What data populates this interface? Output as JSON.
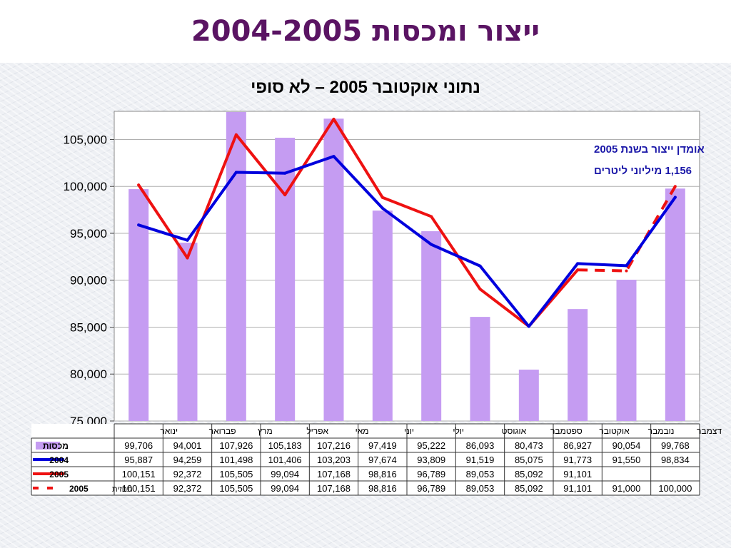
{
  "page": {
    "title": "ייצור ומכסות 2004-2005"
  },
  "chart_data": {
    "type": "bar",
    "title": "נתוני אוקטובר 2005 – לא סופי",
    "annotation_line1": "אומדן ייצור בשנת 2005",
    "annotation_line2": "1,156 מיליוני ליטרים",
    "categories": [
      "ינואר",
      "פברואר",
      "מרץ",
      "אפריל",
      "מאי",
      "יוני",
      "יולי",
      "אוגוסט",
      "ספטמבר",
      "אוקטובר",
      "נובמבר",
      "דצמבר"
    ],
    "ylim": [
      75000,
      108000
    ],
    "yticks": [
      75000,
      80000,
      85000,
      90000,
      95000,
      100000,
      105000
    ],
    "ytick_labels": [
      "75,000",
      "80,000",
      "85,000",
      "90,000",
      "95,000",
      "100,000",
      "105,000"
    ],
    "grid": true,
    "series": [
      {
        "name": "מכסות",
        "kind": "bar",
        "color": "#c59cf2",
        "values": [
          99706,
          94001,
          107926,
          105183,
          107216,
          97419,
          95222,
          86093,
          80473,
          86927,
          90054,
          99768
        ],
        "labels": [
          "99,706",
          "94,001",
          "107,926",
          "105,183",
          "107,216",
          "97,419",
          "95,222",
          "86,093",
          "80,473",
          "86,927",
          "90,054",
          "99,768"
        ]
      },
      {
        "name": "2004",
        "kind": "line",
        "color": "#0000dd",
        "values": [
          95887,
          94259,
          101498,
          101406,
          103203,
          97674,
          93809,
          91519,
          85075,
          91773,
          91550,
          98834
        ],
        "labels": [
          "95,887",
          "94,259",
          "101,498",
          "101,406",
          "103,203",
          "97,674",
          "93,809",
          "91,519",
          "85,075",
          "91,773",
          "91,550",
          "98,834"
        ]
      },
      {
        "name": "2005",
        "kind": "line",
        "color": "#ee1111",
        "values": [
          100151,
          92372,
          105505,
          99094,
          107168,
          98816,
          96789,
          89053,
          85092,
          91101,
          null,
          null
        ],
        "labels": [
          "100,151",
          "92,372",
          "105,505",
          "99,094",
          "107,168",
          "98,816",
          "96,789",
          "89,053",
          "85,092",
          "91,101",
          "",
          ""
        ]
      },
      {
        "name": "2005",
        "legend_prefix": "תחזית",
        "kind": "dashed",
        "color": "#ee1111",
        "values": [
          100151,
          92372,
          105505,
          99094,
          107168,
          98816,
          96789,
          89053,
          85092,
          91101,
          91000,
          100000
        ],
        "labels": [
          "100,151",
          "92,372",
          "105,505",
          "99,094",
          "107,168",
          "98,816",
          "96,789",
          "89,053",
          "85,092",
          "91,101",
          "91,000",
          "100,000"
        ]
      }
    ]
  }
}
